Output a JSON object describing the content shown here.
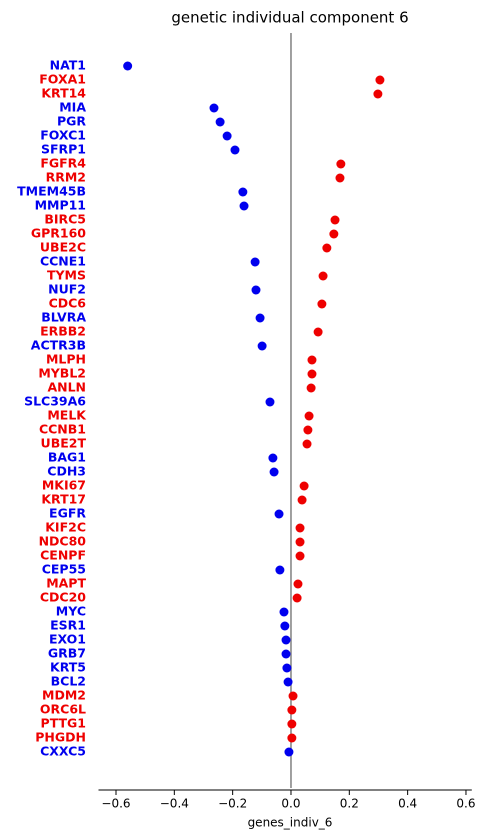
{
  "chart_data": {
    "type": "dot",
    "title": "genetic individual component 6",
    "x_label": "genes_indiv_6",
    "categories": [
      "NAT1",
      "FOXA1",
      "KRT14",
      "MIA",
      "PGR",
      "FOXC1",
      "SFRP1",
      "FGFR4",
      "RRM2",
      "TMEM45B",
      "MMP11",
      "BIRC5",
      "GPR160",
      "UBE2C",
      "CCNE1",
      "TYMS",
      "NUF2",
      "CDC6",
      "BLVRA",
      "ERBB2",
      "ACTR3B",
      "MLPH",
      "MYBL2",
      "ANLN",
      "SLC39A6",
      "MELK",
      "CCNB1",
      "UBE2T",
      "BAG1",
      "CDH3",
      "MKI67",
      "KRT17",
      "EGFR",
      "KIF2C",
      "NDC80",
      "CENPF",
      "CEP55",
      "MAPT",
      "CDC20",
      "MYC",
      "ESR1",
      "EXO1",
      "GRB7",
      "KRT5",
      "BCL2",
      "MDM2",
      "ORC6L",
      "PTTG1",
      "PHGDH",
      "CXXC5"
    ],
    "values": [
      -0.56,
      0.305,
      0.298,
      -0.264,
      -0.243,
      -0.219,
      -0.192,
      0.171,
      0.168,
      -0.165,
      -0.161,
      0.151,
      0.147,
      0.123,
      -0.123,
      0.11,
      -0.12,
      0.106,
      -0.106,
      0.093,
      -0.099,
      0.072,
      0.072,
      0.069,
      -0.072,
      0.062,
      0.058,
      0.055,
      -0.062,
      -0.058,
      0.045,
      0.038,
      -0.041,
      0.031,
      0.031,
      0.031,
      -0.038,
      0.024,
      0.021,
      -0.024,
      -0.021,
      -0.017,
      -0.017,
      -0.014,
      -0.01,
      0.007,
      0.003,
      0.003,
      0.003,
      -0.007
    ],
    "colors": [
      "#0000ee",
      "#ee0000",
      "#ee0000",
      "#0000ee",
      "#0000ee",
      "#0000ee",
      "#0000ee",
      "#ee0000",
      "#ee0000",
      "#0000ee",
      "#0000ee",
      "#ee0000",
      "#ee0000",
      "#ee0000",
      "#0000ee",
      "#ee0000",
      "#0000ee",
      "#ee0000",
      "#0000ee",
      "#ee0000",
      "#0000ee",
      "#ee0000",
      "#ee0000",
      "#ee0000",
      "#0000ee",
      "#ee0000",
      "#ee0000",
      "#ee0000",
      "#0000ee",
      "#0000ee",
      "#ee0000",
      "#ee0000",
      "#0000ee",
      "#ee0000",
      "#ee0000",
      "#ee0000",
      "#0000ee",
      "#ee0000",
      "#ee0000",
      "#0000ee",
      "#0000ee",
      "#0000ee",
      "#0000ee",
      "#0000ee",
      "#0000ee",
      "#ee0000",
      "#ee0000",
      "#ee0000",
      "#ee0000",
      "#0000ee"
    ],
    "xlim": [
      -0.66,
      0.62
    ],
    "xticks": [
      {
        "value": -0.6,
        "label": "−0.6"
      },
      {
        "value": -0.4,
        "label": "−0.4"
      },
      {
        "value": -0.2,
        "label": "−0.2"
      },
      {
        "value": 0,
        "label": "0.0"
      },
      0.2,
      0.4,
      0.6
    ],
    "zero_line_color": "#808080"
  }
}
